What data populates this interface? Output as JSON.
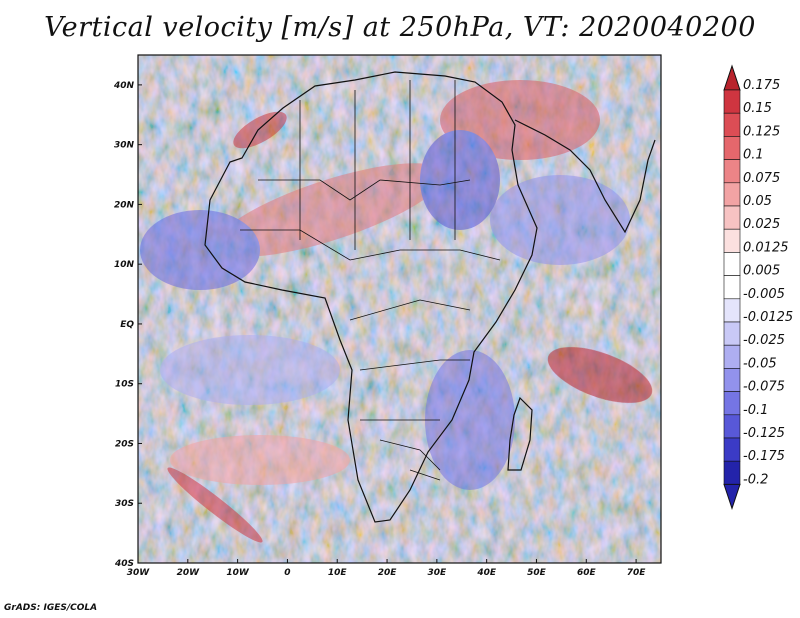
{
  "title": "Vertical velocity [m/s] at 250hPa, VT: 2020040200",
  "footer": "GrADS: IGES/COLA",
  "map": {
    "region": "Africa",
    "lon_range": [
      -30,
      75
    ],
    "lat_range": [
      -40,
      45
    ],
    "lon_ticks": [
      {
        "value": -30,
        "label": "30W"
      },
      {
        "value": -20,
        "label": "20W"
      },
      {
        "value": -10,
        "label": "10W"
      },
      {
        "value": 0,
        "label": "0"
      },
      {
        "value": 10,
        "label": "10E"
      },
      {
        "value": 20,
        "label": "20E"
      },
      {
        "value": 30,
        "label": "30E"
      },
      {
        "value": 40,
        "label": "40E"
      },
      {
        "value": 50,
        "label": "50E"
      },
      {
        "value": 60,
        "label": "60E"
      },
      {
        "value": 70,
        "label": "70E"
      }
    ],
    "lat_ticks": [
      {
        "value": 40,
        "label": "40N"
      },
      {
        "value": 30,
        "label": "30N"
      },
      {
        "value": 20,
        "label": "20N"
      },
      {
        "value": 10,
        "label": "10N"
      },
      {
        "value": 0,
        "label": "EQ"
      },
      {
        "value": -10,
        "label": "10S"
      },
      {
        "value": -20,
        "label": "20S"
      },
      {
        "value": -30,
        "label": "30S"
      },
      {
        "value": -40,
        "label": "40S"
      }
    ]
  },
  "colorbar": {
    "levels": [
      {
        "label": "0.175",
        "color": "#b8232c"
      },
      {
        "label": "0.15",
        "color": "#cf3540"
      },
      {
        "label": "0.125",
        "color": "#dc4d55"
      },
      {
        "label": "0.1",
        "color": "#e5676c"
      },
      {
        "label": "0.075",
        "color": "#ec8487"
      },
      {
        "label": "0.05",
        "color": "#f2a3a4"
      },
      {
        "label": "0.025",
        "color": "#f7c3c3"
      },
      {
        "label": "0.0125",
        "color": "#fbe0df"
      },
      {
        "label": "0.005",
        "color": "#ffffff"
      },
      {
        "label": "-0.005",
        "color": "#ffffff"
      },
      {
        "label": "-0.0125",
        "color": "#e4e4fb"
      },
      {
        "label": "-0.025",
        "color": "#c9c9f6"
      },
      {
        "label": "-0.05",
        "color": "#aeaef1"
      },
      {
        "label": "-0.075",
        "color": "#9292ec"
      },
      {
        "label": "-0.1",
        "color": "#7575e4"
      },
      {
        "label": "-0.125",
        "color": "#5858d8"
      },
      {
        "label": "-0.175",
        "color": "#3b3bc6"
      },
      {
        "label": "-0.2",
        "color": "#2323aa"
      }
    ]
  }
}
